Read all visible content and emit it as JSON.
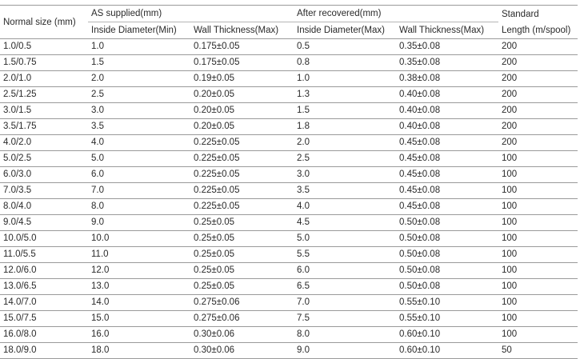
{
  "header": {
    "normal_size": "Normal size (mm)",
    "as_supplied": "AS supplied(mm)",
    "after_recovered": "After recovered(mm)",
    "standard_line1": "Standard",
    "standard_line2": "Length (m/spool)",
    "inside_min": "Inside Diameter(Min)",
    "wall_max_1": "Wall Thickness(Max)",
    "inside_max": "Inside Diameter(Max)",
    "wall_max_2": "Wall Thickness(Max)"
  },
  "rows": [
    [
      "1.0/0.5",
      "1.0",
      "0.175±0.05",
      "0.5",
      "0.35±0.08",
      "200"
    ],
    [
      "1.5/0.75",
      "1.5",
      "0.175±0.05",
      "0.8",
      "0.35±0.08",
      "200"
    ],
    [
      "2.0/1.0",
      "2.0",
      "0.19±0.05",
      "1.0",
      "0.38±0.08",
      "200"
    ],
    [
      "2.5/1.25",
      "2.5",
      "0.20±0.05",
      "1.3",
      "0.40±0.08",
      "200"
    ],
    [
      "3.0/1.5",
      "3.0",
      "0.20±0.05",
      "1.5",
      "0.40±0.08",
      "200"
    ],
    [
      "3.5/1.75",
      "3.5",
      "0.20±0.05",
      "1.8",
      "0.40±0.08",
      "200"
    ],
    [
      "4.0/2.0",
      "4.0",
      "0.225±0.05",
      "2.0",
      "0.45±0.08",
      "200"
    ],
    [
      "5.0/2.5",
      "5.0",
      "0.225±0.05",
      "2.5",
      "0.45±0.08",
      "100"
    ],
    [
      "6.0/3.0",
      "6.0",
      "0.225±0.05",
      "3.0",
      "0.45±0.08",
      "100"
    ],
    [
      "7.0/3.5",
      "7.0",
      "0.225±0.05",
      "3.5",
      "0.45±0.08",
      "100"
    ],
    [
      "8.0/4.0",
      "8.0",
      "0.225±0.05",
      "4.0",
      "0.45±0.08",
      "100"
    ],
    [
      "9.0/4.5",
      "9.0",
      "0.25±0.05",
      "4.5",
      "0.50±0.08",
      "100"
    ],
    [
      "10.0/5.0",
      "10.0",
      "0.25±0.05",
      "5.0",
      "0.50±0.08",
      "100"
    ],
    [
      "11.0/5.5",
      "11.0",
      "0.25±0.05",
      "5.5",
      "0.50±0.08",
      "100"
    ],
    [
      "12.0/6.0",
      "12.0",
      "0.25±0.05",
      "6.0",
      "0.50±0.08",
      "100"
    ],
    [
      "13.0/6.5",
      "13.0",
      "0.25±0.05",
      "6.5",
      "0.50±0.08",
      "100"
    ],
    [
      "14.0/7.0",
      "14.0",
      "0.275±0.06",
      "7.0",
      "0.55±0.10",
      "100"
    ],
    [
      "15.0/7.5",
      "15.0",
      "0.275±0.06",
      "7.5",
      "0.55±0.10",
      "100"
    ],
    [
      "16.0/8.0",
      "16.0",
      "0.30±0.06",
      "8.0",
      "0.60±0.10",
      "100"
    ],
    [
      "18.0/9.0",
      "18.0",
      "0.30±0.06",
      "9.0",
      "0.60±0.10",
      "50"
    ]
  ]
}
